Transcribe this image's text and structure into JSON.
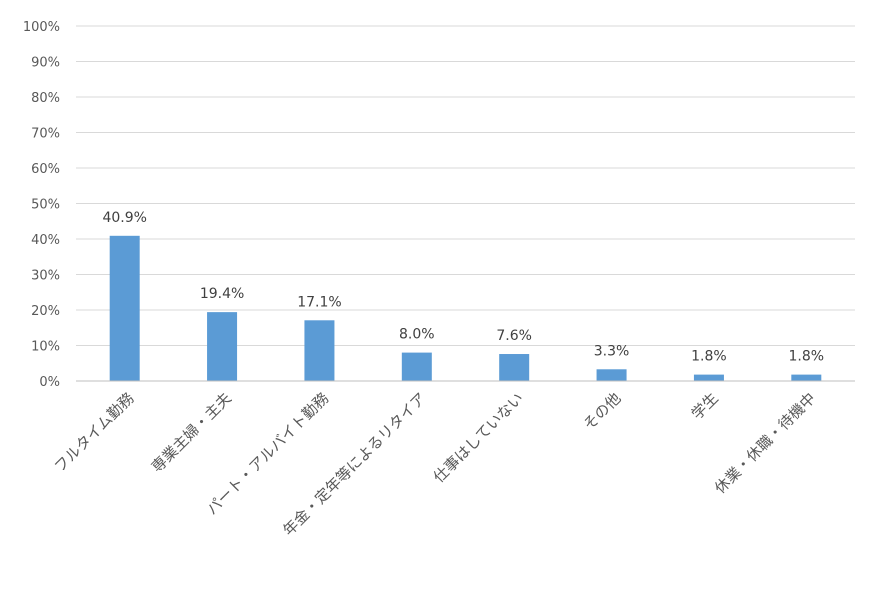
{
  "chart_data": {
    "type": "bar",
    "categories": [
      "フルタイム勤務",
      "専業主婦・主夫",
      "パート・アルバイト勤務",
      "年金・定年等によるリタイア",
      "仕事はしていない",
      "その他",
      "学生",
      "休業・休職・待機中"
    ],
    "values": [
      40.9,
      19.4,
      17.1,
      8.0,
      7.6,
      3.3,
      1.8,
      1.8
    ],
    "data_labels": [
      "40.9%",
      "19.4%",
      "17.1%",
      "8.0%",
      "7.6%",
      "3.3%",
      "1.8%",
      "1.8%"
    ],
    "ylim": [
      0,
      100
    ],
    "yticks": [
      0,
      10,
      20,
      30,
      40,
      50,
      60,
      70,
      80,
      90,
      100
    ],
    "ytick_labels": [
      "0%",
      "10%",
      "20%",
      "30%",
      "40%",
      "50%",
      "60%",
      "70%",
      "80%",
      "90%",
      "100%"
    ],
    "grid": true,
    "bar_color": "#5b9bd5",
    "grid_color": "#d9d9d9"
  }
}
